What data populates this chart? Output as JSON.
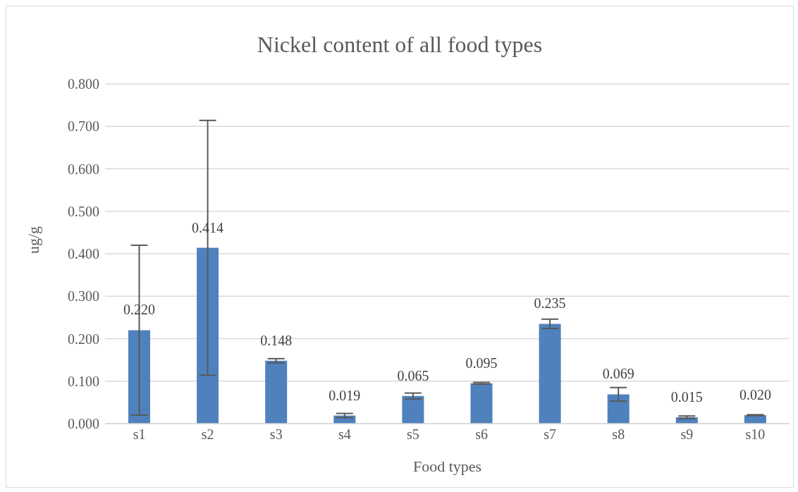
{
  "chart_data": {
    "type": "bar",
    "title": "Nickel content of all food types",
    "xlabel": "Food types",
    "ylabel": "ug/g",
    "categories": [
      "s1",
      "s2",
      "s3",
      "s4",
      "s5",
      "s6",
      "s7",
      "s8",
      "s9",
      "s10"
    ],
    "values": [
      0.22,
      0.414,
      0.148,
      0.019,
      0.065,
      0.095,
      0.235,
      0.069,
      0.015,
      0.02
    ],
    "errors": [
      0.2,
      0.3,
      0.005,
      0.005,
      0.007,
      0.002,
      0.011,
      0.016,
      0.003,
      0.001
    ],
    "value_labels": [
      "0.220",
      "0.414",
      "0.148",
      "0.019",
      "0.065",
      "0.095",
      "0.235",
      "0.069",
      "0.015",
      "0.020"
    ],
    "color": "#4f81bd",
    "ylim": [
      0,
      0.8
    ],
    "yticks": [
      {
        "value": 0,
        "label": "0.000"
      },
      {
        "value": 0.1,
        "label": "0.100"
      },
      {
        "value": 0.2,
        "label": "0.200"
      },
      {
        "value": 0.3,
        "label": "0.300"
      },
      {
        "value": 0.4,
        "label": "0.400"
      },
      {
        "value": 0.5,
        "label": "0.500"
      },
      {
        "value": 0.6,
        "label": "0.600"
      },
      {
        "value": 0.7,
        "label": "0.700"
      },
      {
        "value": 0.8,
        "label": "0.800"
      }
    ],
    "grid": "y",
    "legend": false
  }
}
